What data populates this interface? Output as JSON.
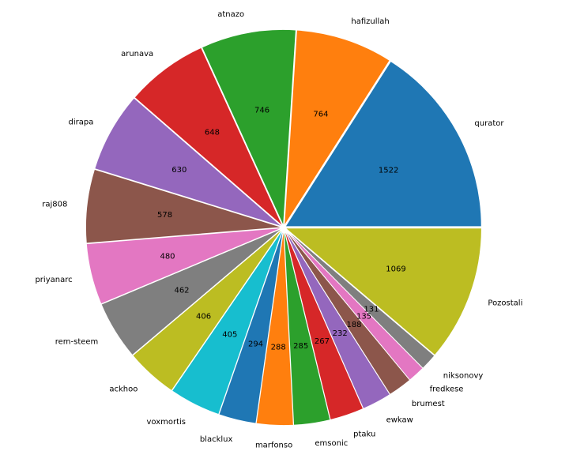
{
  "chart_data": {
    "type": "pie",
    "start_angle_deg": 0,
    "direction": "counterclockwise",
    "explode_fraction": 0.01,
    "slices": [
      {
        "label": "qurator",
        "value": 1522,
        "color": "#1f77b4"
      },
      {
        "label": "hafizullah",
        "value": 764,
        "color": "#ff7f0e"
      },
      {
        "label": "atnazo",
        "value": 746,
        "color": "#2ca02c"
      },
      {
        "label": "arunava",
        "value": 648,
        "color": "#d62728"
      },
      {
        "label": "dirapa",
        "value": 630,
        "color": "#9467bd"
      },
      {
        "label": "raj808",
        "value": 578,
        "color": "#8c564b"
      },
      {
        "label": "priyanarc",
        "value": 480,
        "color": "#e377c2"
      },
      {
        "label": "rem-steem",
        "value": 462,
        "color": "#7f7f7f"
      },
      {
        "label": "ackhoo",
        "value": 406,
        "color": "#bcbd22"
      },
      {
        "label": "voxmortis",
        "value": 405,
        "color": "#17becf"
      },
      {
        "label": "blacklux",
        "value": 294,
        "color": "#1f77b4"
      },
      {
        "label": "marfonso",
        "value": 288,
        "color": "#ff7f0e"
      },
      {
        "label": "emsonic",
        "value": 285,
        "color": "#2ca02c"
      },
      {
        "label": "ptaku",
        "value": 267,
        "color": "#d62728"
      },
      {
        "label": "ewkaw",
        "value": 232,
        "color": "#9467bd"
      },
      {
        "label": "brumest",
        "value": 188,
        "color": "#8c564b"
      },
      {
        "label": "fredkese",
        "value": 135,
        "color": "#e377c2"
      },
      {
        "label": "niksonovy",
        "value": 131,
        "color": "#7f7f7f"
      },
      {
        "label": "Pozostali",
        "value": 1069,
        "color": "#bcbd22"
      }
    ]
  }
}
